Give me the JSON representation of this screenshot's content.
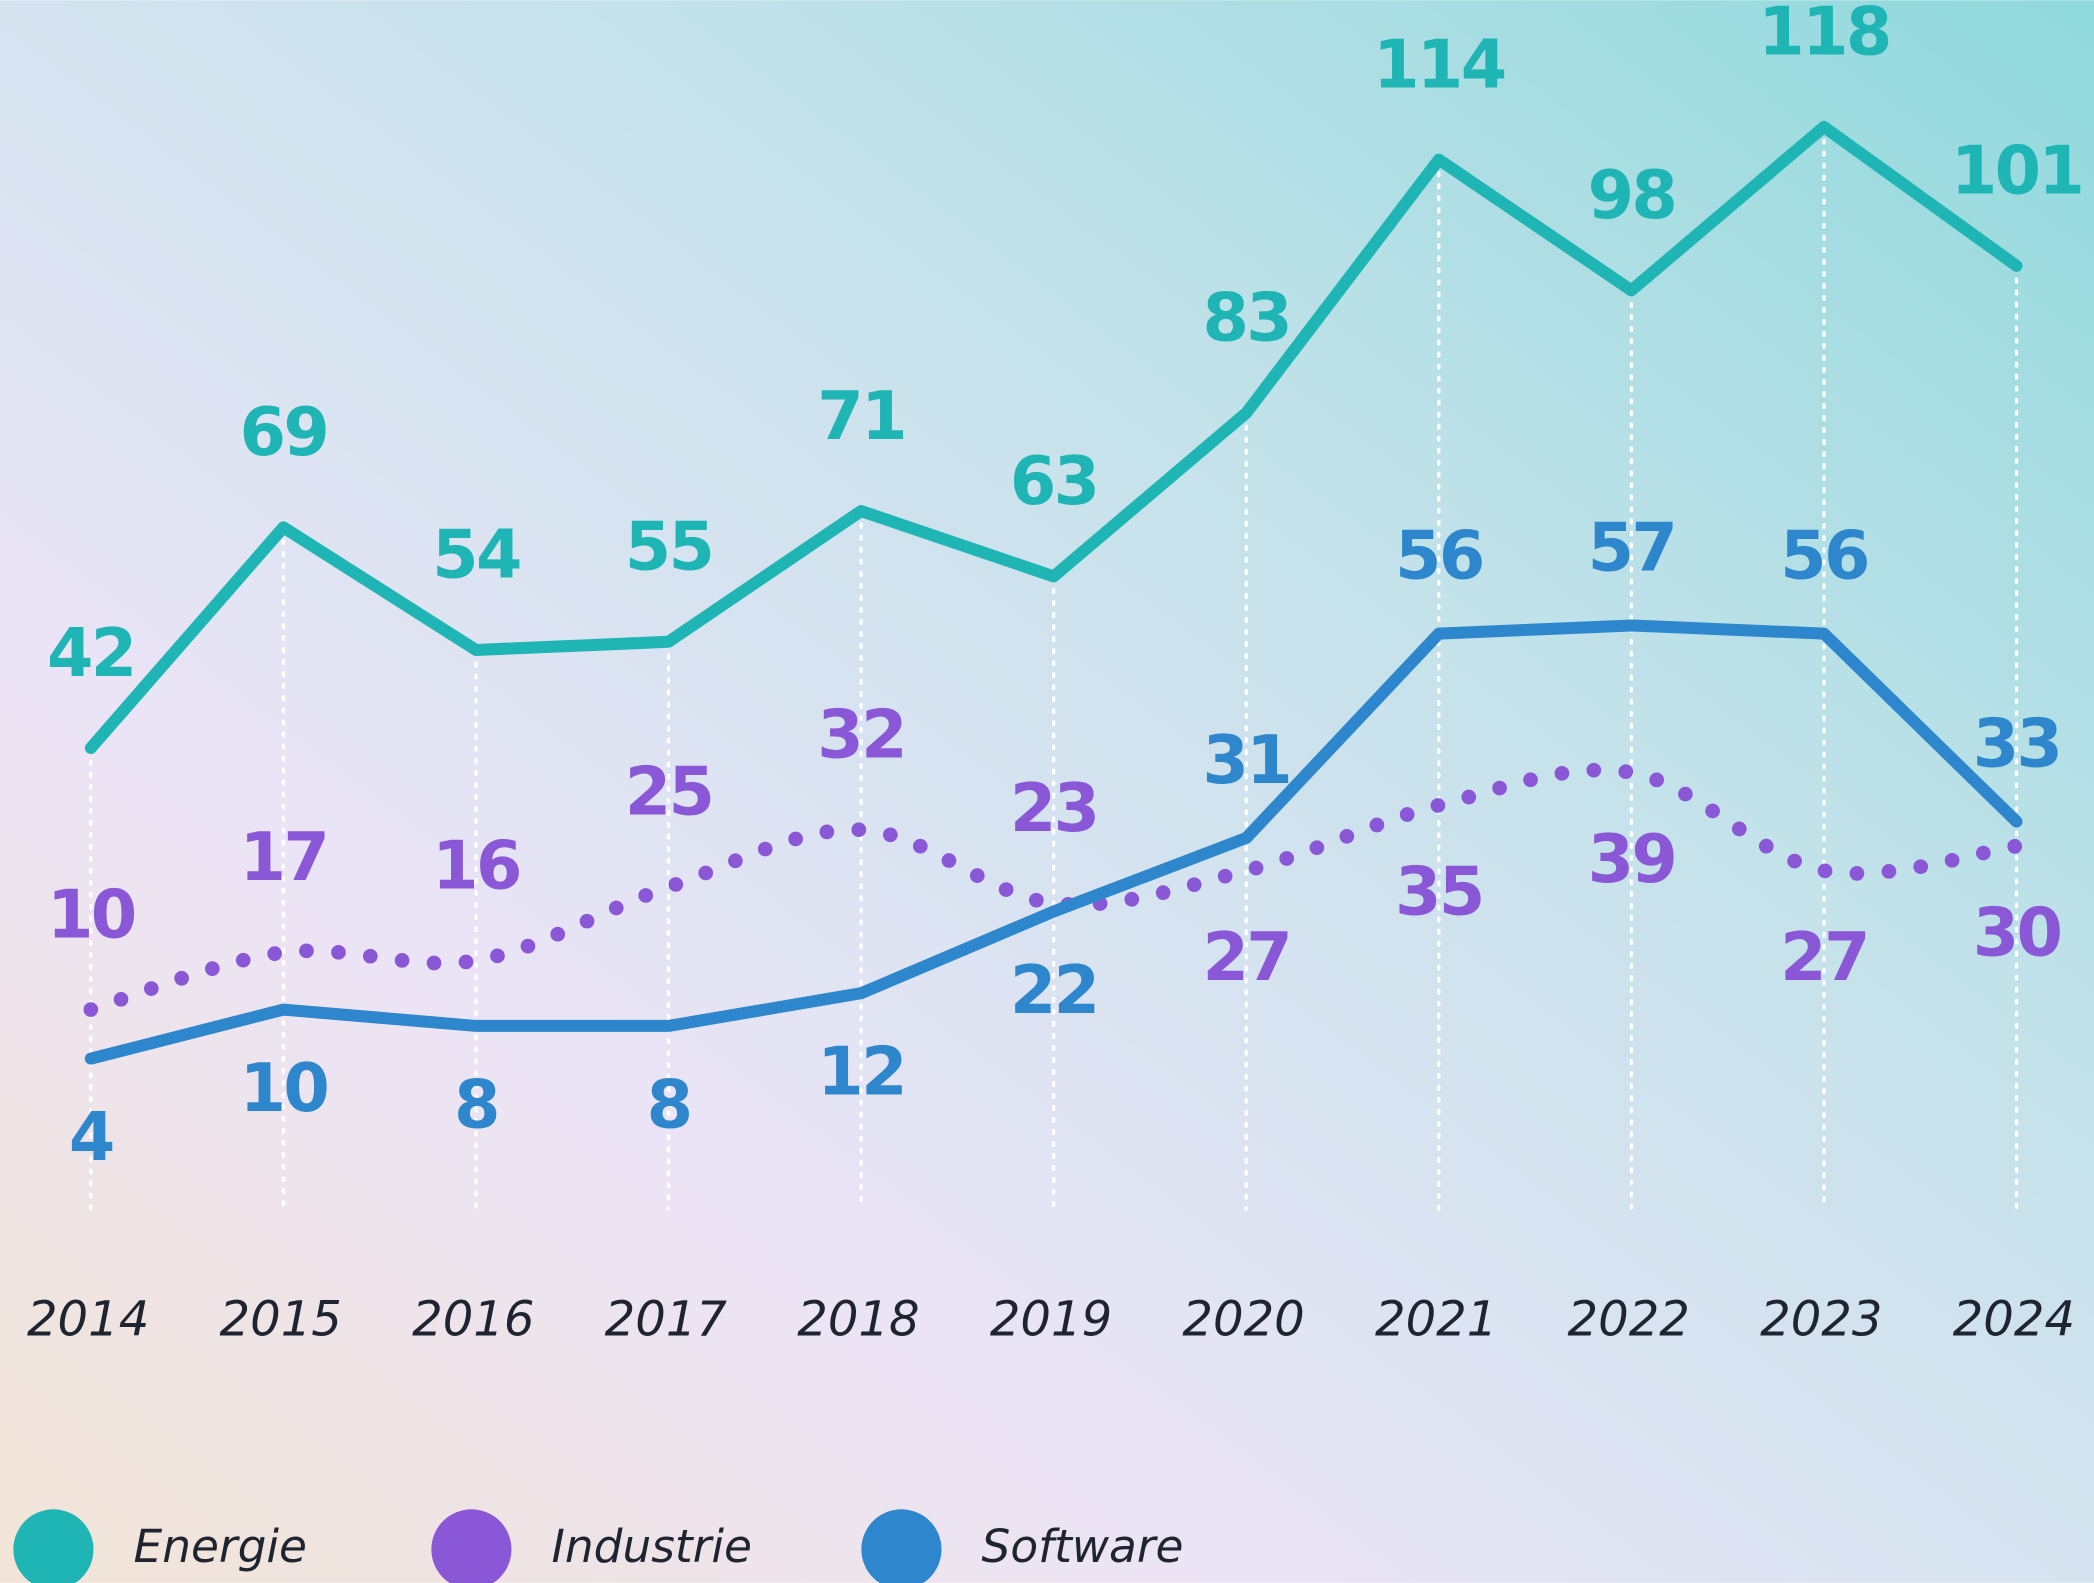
{
  "chart_data": {
    "type": "line",
    "categories": [
      "2014",
      "2015",
      "2016",
      "2017",
      "2018",
      "2019",
      "2020",
      "2021",
      "2022",
      "2023",
      "2024"
    ],
    "series": [
      {
        "name": "Energie",
        "color": "#1fb5b5",
        "values": [
          42,
          69,
          54,
          55,
          71,
          63,
          83,
          114,
          98,
          118,
          101
        ]
      },
      {
        "name": "Industrie",
        "color": "#8a58d6",
        "values": [
          10,
          17,
          16,
          25,
          32,
          23,
          27,
          35,
          39,
          27,
          30
        ]
      },
      {
        "name": "Software",
        "color": "#2e87cc",
        "values": [
          4,
          10,
          8,
          8,
          12,
          22,
          31,
          56,
          57,
          56,
          33
        ]
      }
    ]
  }
}
